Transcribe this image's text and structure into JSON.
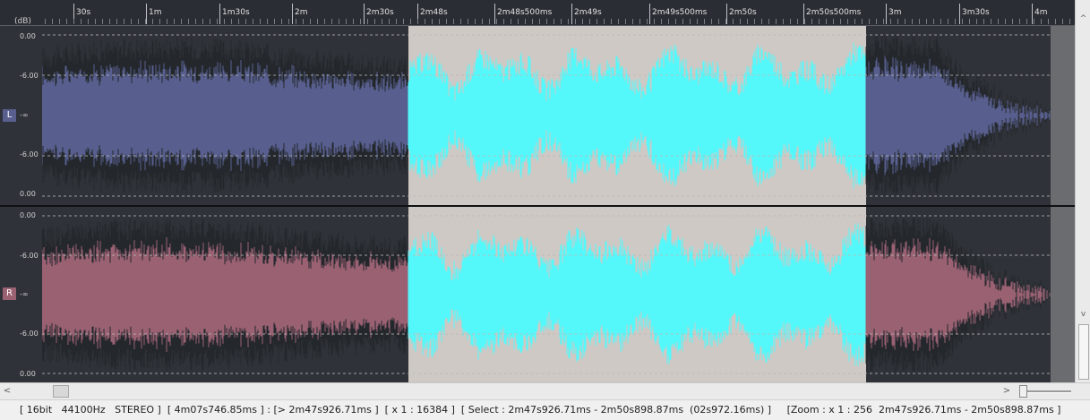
{
  "colors": {
    "background": "#2f3238",
    "left_wave": "#585f8e",
    "right_wave": "#9a6172",
    "selection_bg": "#cec9c4",
    "selection_wave": "#55f8fa",
    "gridline": "#b9b9b9",
    "scroll_end": "#6a6c70"
  },
  "ruler": {
    "unit_label": "(dB)",
    "ticks": [
      "30s",
      "1m",
      "1m30s",
      "2m",
      "2m30s",
      "2m48s",
      "2m48s500ms",
      "2m49s",
      "2m49s500ms",
      "2m50s",
      "2m50s500ms",
      "3m",
      "3m30s",
      "4m"
    ]
  },
  "channels": [
    {
      "id": "left",
      "badge": "L",
      "db_labels": [
        "0.00",
        "-6.00",
        "-∞",
        "-6.00",
        "0.00"
      ]
    },
    {
      "id": "right",
      "badge": "R",
      "db_labels": [
        "0.00",
        "-6.00",
        "-∞",
        "-6.00",
        "0.00"
      ]
    }
  ],
  "scrollbars": {
    "left_arrow": "<",
    "right_arrow": ">",
    "up_arrow": "^",
    "down_arrow": "v"
  },
  "status": {
    "text": "[ 16bit   44100Hz   STEREO ]  [ 4m07s746.85ms ] : [> 2m47s926.71ms ]  [ x 1 : 16384 ]  [ Select : 2m47s926.71ms - 2m50s898.87ms  (02s972.16ms) ]     [Zoom : x 1 : 256  2m47s926.71ms - 2m50s898.87ms ]"
  }
}
